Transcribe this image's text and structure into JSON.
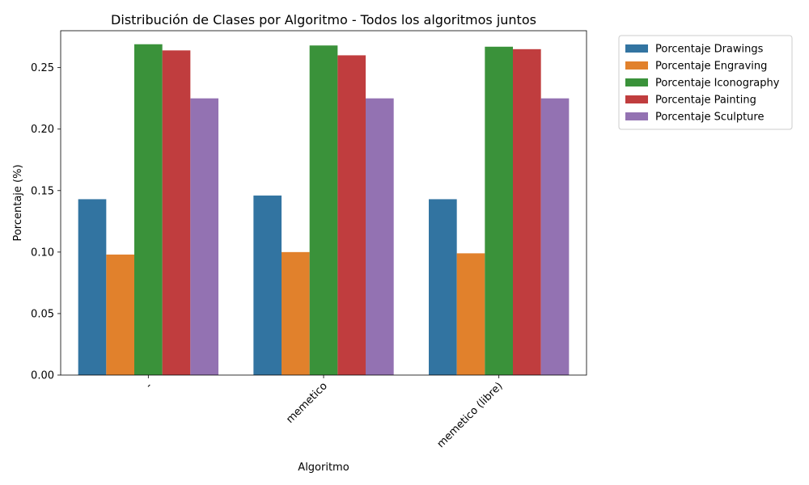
{
  "chart_data": {
    "type": "bar",
    "title": "Distribución de Clases por Algoritmo - Todos los algoritmos juntos",
    "xlabel": "Algoritmo",
    "ylabel": "Porcentaje (%)",
    "categories": [
      "-",
      "memetico",
      "memetico (libre)"
    ],
    "ylim": [
      0,
      0.28
    ],
    "yticks": [
      0.0,
      0.05,
      0.1,
      0.15,
      0.2,
      0.25
    ],
    "ytick_labels": [
      "0.00",
      "0.05",
      "0.10",
      "0.15",
      "0.20",
      "0.25"
    ],
    "legend_position": "outside-top-right",
    "grid": false,
    "series": [
      {
        "name": "Porcentaje Drawings",
        "color": "#3274a1",
        "values": [
          0.143,
          0.146,
          0.143
        ]
      },
      {
        "name": "Porcentaje Engraving",
        "color": "#e1812c",
        "values": [
          0.098,
          0.1,
          0.099
        ]
      },
      {
        "name": "Porcentaje Iconography",
        "color": "#3a923a",
        "values": [
          0.269,
          0.268,
          0.267
        ]
      },
      {
        "name": "Porcentaje Painting",
        "color": "#c03d3e",
        "values": [
          0.264,
          0.26,
          0.265
        ]
      },
      {
        "name": "Porcentaje Sculpture",
        "color": "#9372b2",
        "values": [
          0.225,
          0.225,
          0.225
        ]
      }
    ]
  }
}
